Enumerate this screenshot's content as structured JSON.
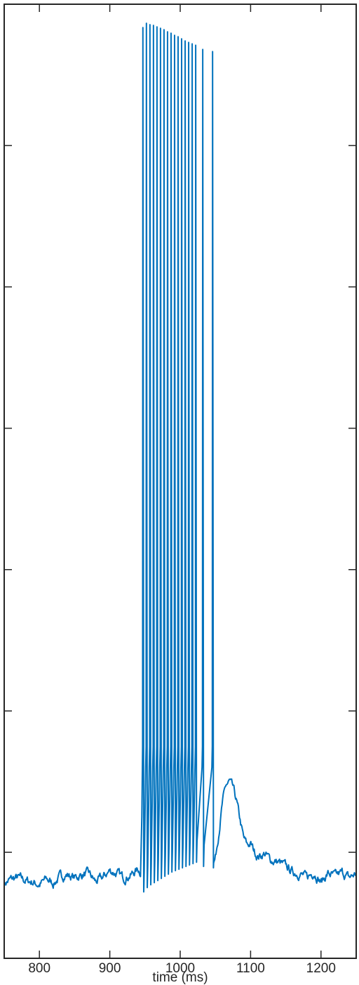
{
  "chart_data": {
    "type": "line",
    "xlabel": "time (ms)",
    "ylabel": "",
    "xlim": [
      750,
      1250
    ],
    "ylim": [
      -75,
      60
    ],
    "x_ticks": [
      800,
      900,
      1000,
      1100,
      1200
    ],
    "x_tick_labels": [
      "800",
      "900",
      "1000",
      "1100",
      "1200"
    ],
    "y_ticks": [
      -60,
      -40,
      -20,
      0,
      20,
      40
    ],
    "y_tick_labels": [
      "",
      "",
      "",
      "",
      "",
      ""
    ],
    "grid": false,
    "box": true,
    "colors": {
      "line": "#0072BD",
      "axes": "#262626",
      "background": "#ffffff"
    },
    "series": [
      {
        "spike_times": [
          947,
          952,
          957,
          962,
          967,
          972,
          977,
          982,
          987,
          992,
          997,
          1002,
          1007,
          1012,
          1017,
          1022,
          1032,
          1046
        ],
        "spike_peaks": [
          56.7,
          57.3,
          57.1,
          57.0,
          56.8,
          56.6,
          56.4,
          56.1,
          55.9,
          55.6,
          55.4,
          55.1,
          54.8,
          54.6,
          54.4,
          54.2,
          53.6,
          53.3
        ],
        "trough_values": [
          -65.6,
          -65.0,
          -64.6,
          -64.3,
          -64.0,
          -63.7,
          -63.4,
          -63.1,
          -62.8,
          -62.6,
          -62.4,
          -62.2,
          -62.0,
          -61.8,
          -61.6,
          -61.4,
          -62.0,
          -62.2
        ],
        "baseline_knots": {
          "x": [
            750,
            760,
            770,
            780,
            790,
            800,
            810,
            820,
            830,
            840,
            850,
            860,
            870,
            880,
            890,
            900,
            910,
            920,
            930,
            940,
            944,
            1047,
            1050,
            1055,
            1060,
            1065,
            1070,
            1075,
            1080,
            1085,
            1090,
            1095,
            1100,
            1105,
            1110,
            1120,
            1130,
            1140,
            1150,
            1160,
            1170,
            1180,
            1190,
            1200,
            1210,
            1220,
            1230,
            1240,
            1250
          ],
          "y": [
            -64.4,
            -63.8,
            -63.6,
            -64.0,
            -64.2,
            -64.6,
            -63.8,
            -64.4,
            -63.4,
            -63.2,
            -63.6,
            -63.2,
            -63.0,
            -64.2,
            -63.6,
            -62.6,
            -63.0,
            -63.6,
            -63.2,
            -62.4,
            -62.8,
            -61.8,
            -60.8,
            -57.0,
            -53.0,
            -50.6,
            -50.0,
            -51.0,
            -52.8,
            -55.5,
            -58.0,
            -59.0,
            -58.8,
            -59.8,
            -60.6,
            -60.2,
            -61.2,
            -61.4,
            -62.0,
            -62.8,
            -63.0,
            -63.6,
            -62.8,
            -64.2,
            -63.0,
            -63.4,
            -62.9,
            -63.6,
            -63.0
          ]
        }
      }
    ]
  }
}
